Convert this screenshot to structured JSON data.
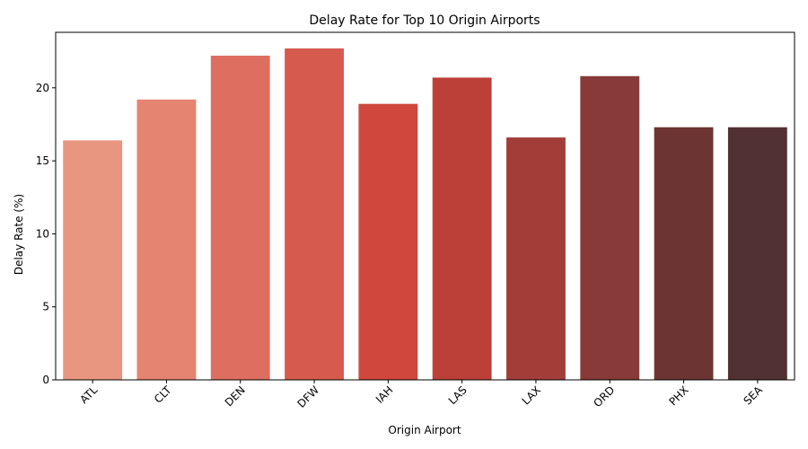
{
  "chart_data": {
    "type": "bar",
    "title": "Delay Rate for Top 10 Origin Airports",
    "xlabel": "Origin Airport",
    "ylabel": "Delay Rate (%)",
    "categories": [
      "ATL",
      "CLT",
      "DEN",
      "DFW",
      "IAH",
      "LAS",
      "LAX",
      "ORD",
      "PHX",
      "SEA"
    ],
    "values": [
      16.4,
      19.2,
      22.2,
      22.7,
      18.9,
      20.7,
      16.6,
      20.8,
      17.3,
      17.3
    ],
    "colors": [
      "#e8967f",
      "#e48471",
      "#de6f60",
      "#d65a4e",
      "#cf473d",
      "#bc3f38",
      "#a23d38",
      "#873a38",
      "#6c3534",
      "#513132"
    ],
    "yticks": [
      0,
      5,
      10,
      15,
      20
    ],
    "ylim": [
      0,
      23.8
    ],
    "grid": false,
    "legend": "none",
    "xtick_rotation": 45
  }
}
